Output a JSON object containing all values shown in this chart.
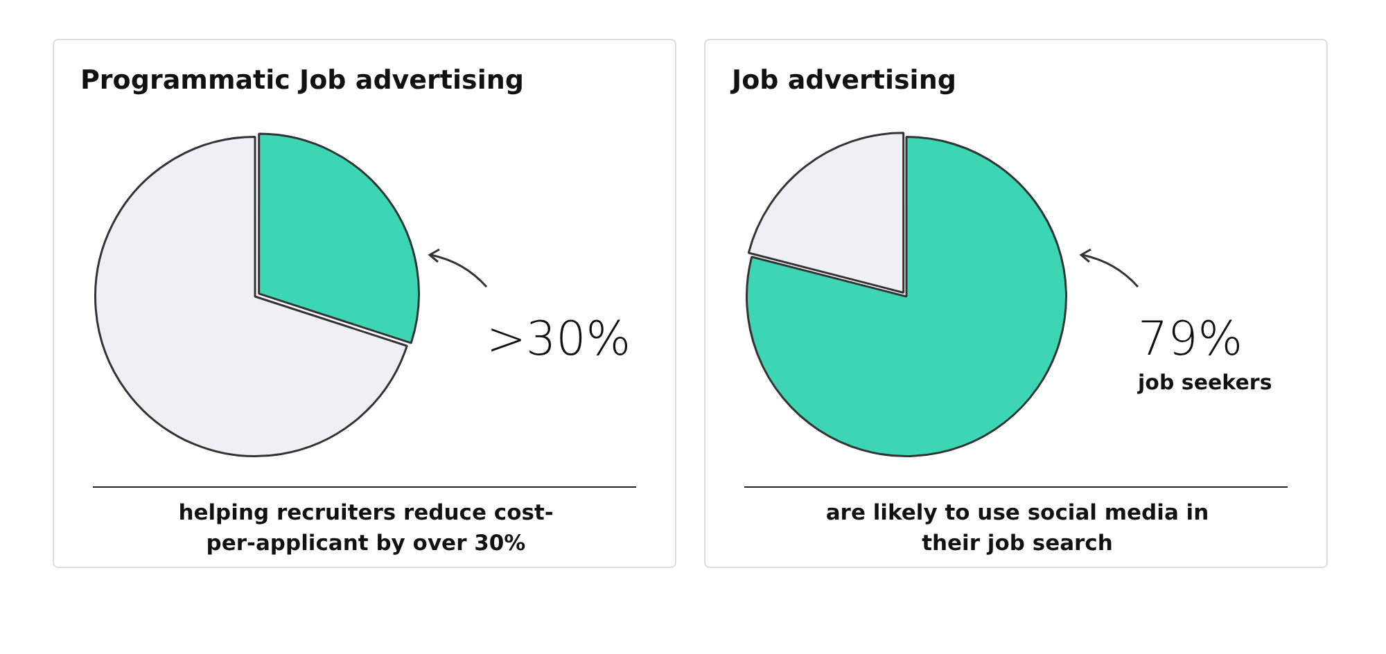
{
  "chart_data": [
    {
      "type": "pie",
      "title": "Programmatic Job advertising",
      "categories": [
        null,
        null
      ],
      "values": [
        30,
        70
      ],
      "colors": [
        "#3dd6b5",
        "#eff0f5"
      ],
      "legend": false,
      "annotations": [
        ">30%",
        "helping recruiters reduce cost-per-applicant by over 30%"
      ]
    },
    {
      "type": "pie",
      "title": "Job advertising",
      "categories": [
        null,
        null
      ],
      "values": [
        79,
        21
      ],
      "colors": [
        "#3dd6b5",
        "#eff0f5"
      ],
      "legend": false,
      "annotations": [
        "79%",
        "job seekers",
        "are likely to use social media in their job search"
      ]
    }
  ]
}
